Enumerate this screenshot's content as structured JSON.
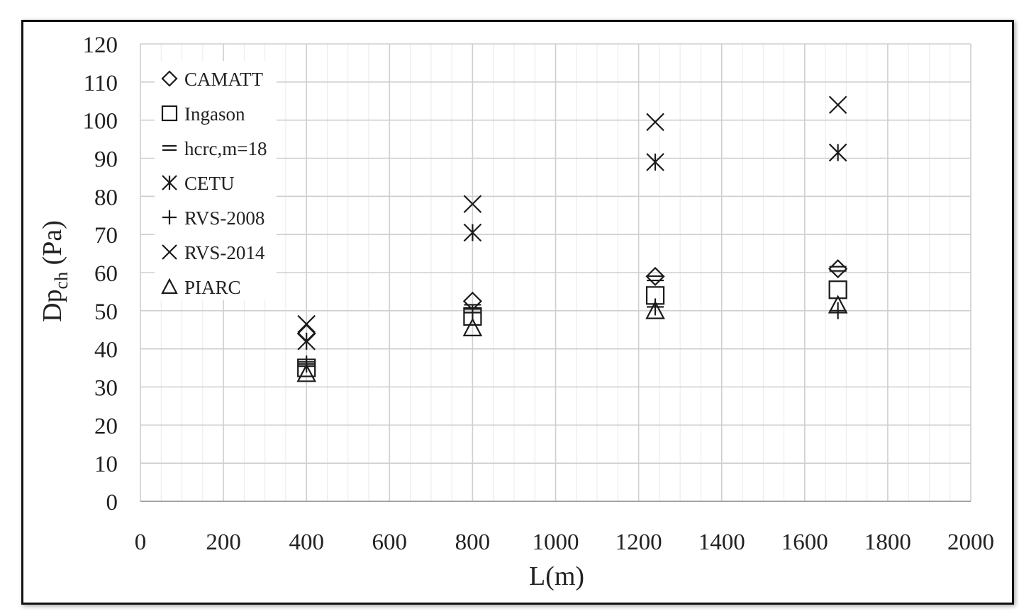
{
  "chart_data": {
    "type": "scatter",
    "xlabel": "L(m)",
    "ylabel": {
      "main": "Dp",
      "sub": "ch",
      "unit": " (Pa)"
    },
    "xlim": [
      0,
      2000
    ],
    "ylim": [
      0,
      120
    ],
    "xticks": [
      "0",
      "200",
      "400",
      "600",
      "800",
      "1000",
      "1200",
      "1400",
      "1600",
      "1800",
      "2000"
    ],
    "yticks": [
      "0",
      "10",
      "20",
      "30",
      "40",
      "50",
      "60",
      "70",
      "80",
      "90",
      "100",
      "110",
      "120"
    ],
    "grid": true,
    "legend_position": "top-left",
    "series": [
      {
        "name": "CAMATT",
        "marker": "diamond",
        "x": [
          400,
          800,
          1240,
          1680
        ],
        "y": [
          44,
          52.5,
          59,
          61
        ]
      },
      {
        "name": "Ingason",
        "marker": "square",
        "x": [
          400,
          800,
          1240,
          1680
        ],
        "y": [
          35,
          48.5,
          54,
          55.5
        ]
      },
      {
        "name": "hcrc,m=18",
        "marker": "double-dash",
        "x": [
          400,
          800,
          1240,
          1680
        ],
        "y": [
          36,
          51,
          58.5,
          61
        ]
      },
      {
        "name": "CETU",
        "marker": "asterisk",
        "x": [
          400,
          800,
          1240,
          1680
        ],
        "y": [
          42,
          70.5,
          89,
          91.5
        ]
      },
      {
        "name": "RVS-2008",
        "marker": "plus",
        "x": [
          400,
          800,
          1240,
          1680
        ],
        "y": [
          36,
          49.5,
          51,
          50
        ]
      },
      {
        "name": "RVS-2014",
        "marker": "x",
        "x": [
          400,
          800,
          1240,
          1680
        ],
        "y": [
          46.5,
          78,
          99.5,
          104
        ]
      },
      {
        "name": "PIARC",
        "marker": "triangle",
        "x": [
          400,
          800,
          1240,
          1680
        ],
        "y": [
          33.5,
          45.5,
          50,
          51.5
        ]
      }
    ]
  }
}
